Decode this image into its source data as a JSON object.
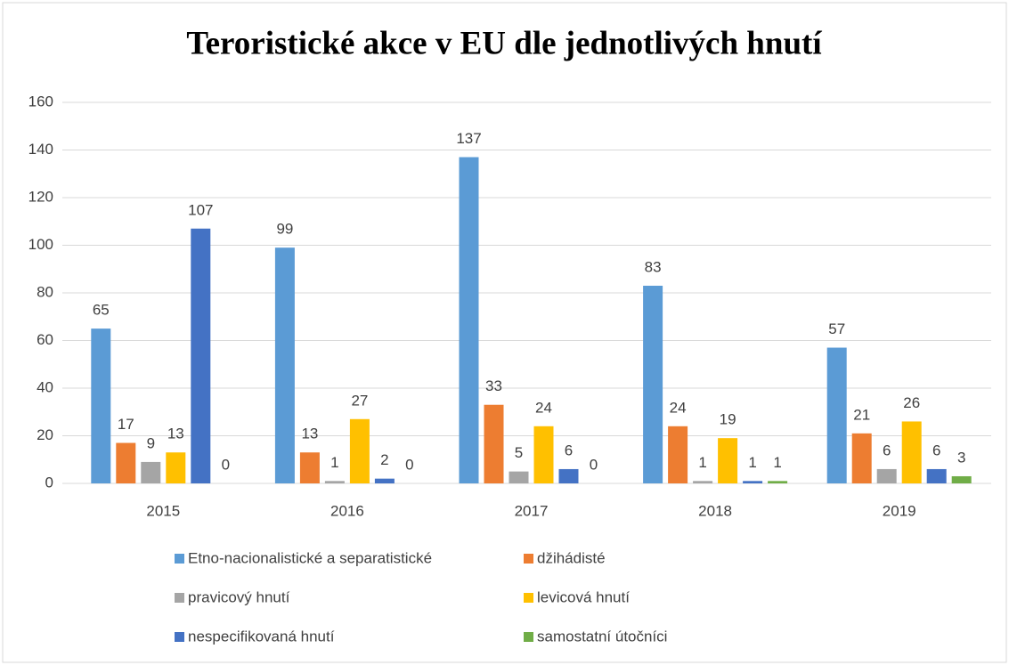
{
  "chart_data": {
    "type": "bar",
    "title": "Teroristické akce v EU dle jednotlivých hnutí",
    "categories": [
      "2015",
      "2016",
      "2017",
      "2018",
      "2019"
    ],
    "series": [
      {
        "name": "Etno-nacionalistické a separatistické",
        "color": "#5b9bd5",
        "values": [
          65,
          99,
          137,
          83,
          57
        ]
      },
      {
        "name": "džihádisté",
        "color": "#ed7d31",
        "values": [
          17,
          13,
          33,
          24,
          21
        ]
      },
      {
        "name": "pravicový hnutí",
        "color": "#a5a5a5",
        "values": [
          9,
          1,
          5,
          1,
          6
        ]
      },
      {
        "name": "levicová hnutí",
        "color": "#ffc000",
        "values": [
          13,
          27,
          24,
          19,
          26
        ]
      },
      {
        "name": "nespecifikovaná hnutí",
        "color": "#4472c4",
        "values": [
          107,
          2,
          6,
          1,
          6
        ]
      },
      {
        "name": "samostatní útočníci",
        "color": "#70ad47",
        "values": [
          0,
          0,
          0,
          1,
          3
        ]
      }
    ],
    "ylim": [
      0,
      160
    ],
    "yticks": [
      0,
      20,
      40,
      60,
      80,
      100,
      120,
      140,
      160
    ],
    "grid": true,
    "legend": "bottom"
  }
}
